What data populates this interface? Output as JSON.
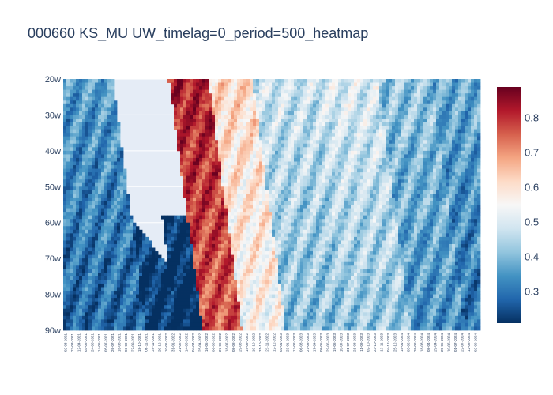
{
  "chart_data": {
    "type": "heatmap",
    "title": "000660 KS_MU UW_timelag=0_period=500_heatmap",
    "xlabel": "",
    "ylabel": "",
    "y_categories": [
      "20w",
      "30w",
      "40w",
      "50w",
      "60w",
      "70w",
      "80w",
      "90w"
    ],
    "x_tick_labels": [
      "02-03-2021",
      "23-03-2021",
      "12-04-2021",
      "03-05-2021",
      "24-05-2021",
      "14-06-2021",
      "05-07-2021",
      "26-07-2021",
      "16-08-2021",
      "06-09-2021",
      "27-09-2021",
      "18-10-2021",
      "08-11-2021",
      "29-11-2021",
      "20-12-2021",
      "10-01-2022",
      "31-01-2022",
      "21-02-2022",
      "14-03-2022",
      "04-04-2022",
      "25-04-2022",
      "16-05-2022",
      "06-06-2022",
      "27-06-2022",
      "18-07-2022",
      "08-08-2022",
      "29-08-2022",
      "19-09-2022",
      "10-10-2022",
      "31-10-2022",
      "21-11-2022",
      "12-12-2022",
      "02-01-2023",
      "23-01-2023",
      "13-02-2023",
      "06-03-2023",
      "27-03-2023",
      "17-04-2023",
      "08-05-2023",
      "29-05-2023",
      "19-06-2023",
      "10-07-2023",
      "31-07-2023",
      "21-08-2023",
      "11-09-2023",
      "02-10-2023",
      "23-10-2023",
      "13-11-2023",
      "04-12-2023",
      "25-12-2023",
      "15-01-2024",
      "05-02-2024",
      "26-02-2024",
      "18-03-2024",
      "08-04-2024",
      "29-04-2024",
      "20-05-2024",
      "10-06-2024",
      "01-07-2024",
      "22-07-2024",
      "12-08-2024",
      "02-09-2024"
    ],
    "colorscale": [
      "#053061",
      "#2166ac",
      "#4393c3",
      "#92c5de",
      "#d1e5f0",
      "#f7f7f7",
      "#fddbc7",
      "#f4a582",
      "#d6604d",
      "#b2182b",
      "#67001f"
    ],
    "colorbar": {
      "min": 0.21,
      "max": 0.89,
      "ticks": [
        0.3,
        0.4,
        0.5,
        0.6,
        0.7,
        0.8
      ]
    },
    "series_note": "",
    "bands": [
      {
        "x_start": 0.0,
        "x_end": 0.115,
        "base": 0.36,
        "slope": 0.45,
        "valid_from": 0.0,
        "valid_to": 1.0
      },
      {
        "x_start": 0.115,
        "x_end": 0.19,
        "base": 0.3,
        "slope": 0.35,
        "valid_from": 0.0,
        "valid_to": 1.0
      },
      {
        "x_start": 0.19,
        "x_end": 0.25,
        "base": 0.28,
        "slope": 0.3,
        "valid_from": 0.55,
        "valid_to": 1.0
      },
      {
        "x_start": 0.25,
        "x_end": 0.345,
        "base": 0.82,
        "slope": 0.6,
        "valid_from": 0.0,
        "valid_to": 1.0
      },
      {
        "x_start": 0.345,
        "x_end": 0.45,
        "base": 0.62,
        "slope": 0.55,
        "valid_from": 0.0,
        "valid_to": 1.0
      },
      {
        "x_start": 0.45,
        "x_end": 0.6,
        "base": 0.48,
        "slope": 0.5,
        "valid_from": 0.0,
        "valid_to": 1.0
      },
      {
        "x_start": 0.6,
        "x_end": 0.75,
        "base": 0.5,
        "slope": 0.45,
        "valid_from": 0.0,
        "valid_to": 1.0
      },
      {
        "x_start": 0.75,
        "x_end": 0.88,
        "base": 0.42,
        "slope": 0.45,
        "valid_from": 0.0,
        "valid_to": 1.0
      },
      {
        "x_start": 0.88,
        "x_end": 1.0,
        "base": 0.38,
        "slope": 0.4,
        "valid_from": 0.0,
        "valid_to": 1.0
      }
    ]
  }
}
